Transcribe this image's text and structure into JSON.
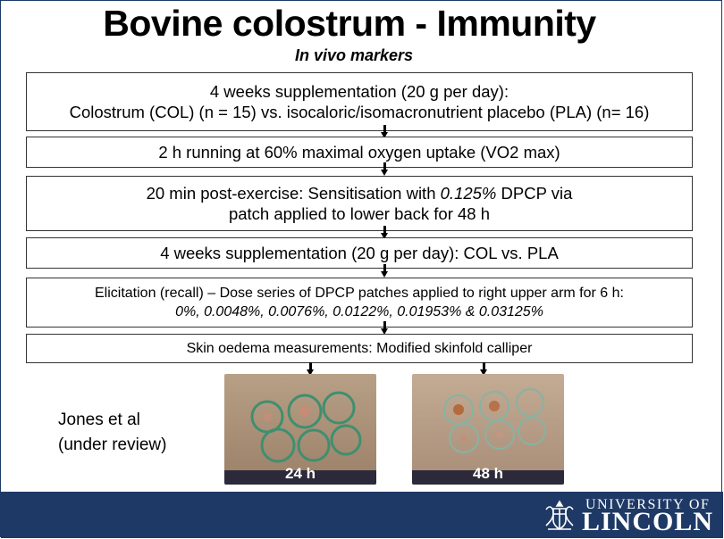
{
  "title": "Bovine colostrum - Immunity",
  "subtitle": "In vivo markers",
  "steps": [
    {
      "line1": "4 weeks supplementation (20 g per day):",
      "line2": "Colostrum (COL) (n = 15) vs. isocaloric/isomacronutrient placebo (PLA) (n= 16)"
    },
    {
      "line1": "2 h running at 60% maximal oxygen uptake (VO2 max)"
    },
    {
      "line1a": "20 min post-exercise: Sensitisation with ",
      "line1b": "0.125%",
      "line1c": " DPCP via",
      "line2": "patch applied to lower back  for 48 h"
    },
    {
      "line1": "4 weeks supplementation (20 g per day): COL vs. PLA"
    },
    {
      "line1": "Elicitation (recall) – Dose series of DPCP patches applied to right upper arm for 6 h:",
      "line2": "0%, 0.0048%, 0.0076%, 0.0122%, 0.01953% & 0.03125%"
    },
    {
      "line1": "Skin oedema measurements: Modified skinfold calliper"
    }
  ],
  "photos": [
    {
      "label": "24 h"
    },
    {
      "label": "48 h"
    }
  ],
  "reference": {
    "line1": "Jones et al",
    "line2": "(under review)"
  },
  "logo": {
    "top": "UNIVERSITY OF",
    "main": "LINCOLN"
  },
  "colors": {
    "footer": "#1e3966",
    "skin": "#b89a80",
    "marker": "#3a8a6a"
  }
}
